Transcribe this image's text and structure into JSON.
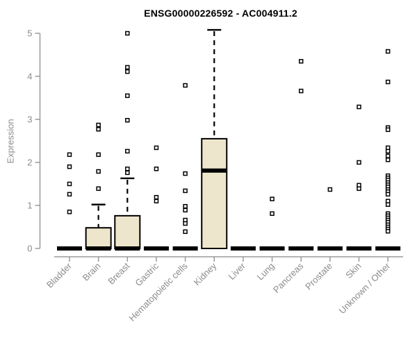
{
  "chart_data": {
    "type": "boxplot",
    "title": "ENSG00000226592 - AC004911.2",
    "ylabel": "Expression",
    "xlabel": "",
    "ylim": [
      0,
      5
    ],
    "yticks": [
      0,
      1,
      2,
      3,
      4,
      5
    ],
    "grid": false,
    "legend": "none",
    "marker": "open-square",
    "colors": {
      "box_fill": "#ede6cc",
      "box_border": "#000000",
      "median": "#000000",
      "axis": "#9a9a9a",
      "tick_text": "#8c8c8c",
      "title_text": "#000000",
      "outlier_fill": "#ffffff",
      "outlier_border": "#000000"
    },
    "categories": [
      {
        "name": "Bladder",
        "q1": 0,
        "median": 0,
        "q3": 0,
        "whisker_high": 0,
        "outliers": [
          2.18,
          1.9,
          1.5,
          1.26,
          0.85
        ]
      },
      {
        "name": "Brain",
        "q1": 0,
        "median": 0,
        "q3": 0.48,
        "whisker_high": 1.02,
        "outliers": [
          2.87,
          2.77,
          2.18,
          1.79,
          1.39
        ]
      },
      {
        "name": "Breast",
        "q1": 0,
        "median": 0,
        "q3": 0.76,
        "whisker_high": 1.63,
        "outliers": [
          5.0,
          4.21,
          4.11,
          3.55,
          2.98,
          2.26,
          1.85,
          1.76
        ]
      },
      {
        "name": "Gastric",
        "q1": 0,
        "median": 0,
        "q3": 0,
        "whisker_high": 0,
        "outliers": [
          2.34,
          1.85,
          1.19,
          1.1
        ]
      },
      {
        "name": "Hematopoietic cells",
        "q1": 0,
        "median": 0,
        "q3": 0,
        "whisker_high": 0,
        "outliers": [
          3.79,
          1.74,
          1.34,
          0.98,
          0.89,
          0.66,
          0.58,
          0.39
        ]
      },
      {
        "name": "Kidney",
        "q1": 0,
        "median": 1.81,
        "q3": 2.55,
        "whisker_high": 5.08,
        "outliers": []
      },
      {
        "name": "Liver",
        "q1": 0,
        "median": 0,
        "q3": 0,
        "whisker_high": 0,
        "outliers": []
      },
      {
        "name": "Lung",
        "q1": 0,
        "median": 0,
        "q3": 0,
        "whisker_high": 0,
        "outliers": [
          1.15,
          0.81
        ]
      },
      {
        "name": "Pancreas",
        "q1": 0,
        "median": 0,
        "q3": 0,
        "whisker_high": 0,
        "outliers": [
          4.35,
          3.66
        ]
      },
      {
        "name": "Prostate",
        "q1": 0,
        "median": 0,
        "q3": 0,
        "whisker_high": 0,
        "outliers": [
          1.37
        ]
      },
      {
        "name": "Skin",
        "q1": 0,
        "median": 0,
        "q3": 0,
        "whisker_high": 0,
        "outliers": [
          3.29,
          2.0,
          1.47,
          1.39
        ]
      },
      {
        "name": "Unknown / Other",
        "q1": 0,
        "median": 0,
        "q3": 0,
        "whisker_high": 0,
        "outliers": [
          4.58,
          3.87,
          2.81,
          2.76,
          2.34,
          2.26,
          2.15,
          2.06,
          1.69,
          1.64,
          1.59,
          1.53,
          1.48,
          1.43,
          1.37,
          1.32,
          1.26,
          1.1,
          1.02,
          0.81,
          0.76,
          0.71,
          0.66,
          0.61,
          0.55,
          0.5,
          0.45,
          0.4
        ]
      }
    ]
  }
}
